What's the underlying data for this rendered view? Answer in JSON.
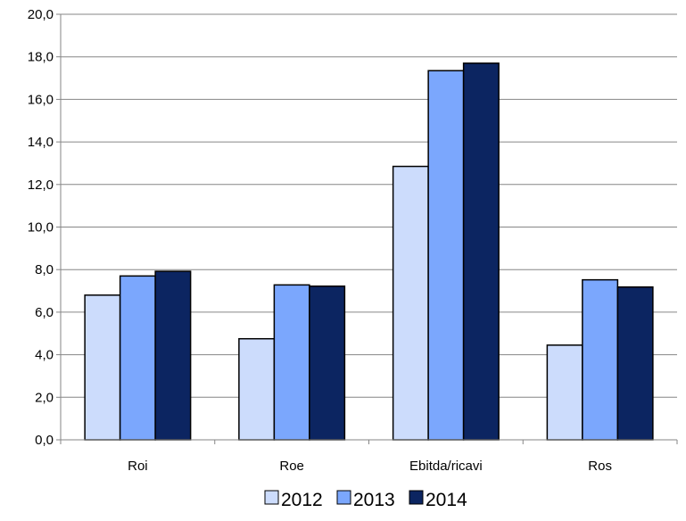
{
  "chart_data": {
    "type": "bar",
    "categories": [
      "Roi",
      "Roe",
      "Ebitda/ricavi",
      "Ros"
    ],
    "series": [
      {
        "name": "2012",
        "color": "#ccdcfc",
        "values": [
          6.8,
          4.75,
          12.85,
          4.45
        ]
      },
      {
        "name": "2013",
        "color": "#7ba7fd",
        "values": [
          7.7,
          7.28,
          17.35,
          7.52
        ]
      },
      {
        "name": "2014",
        "color": "#0c2561",
        "values": [
          7.92,
          7.22,
          17.7,
          7.18
        ]
      }
    ],
    "yticks": [
      "0,0",
      "2,0",
      "4,0",
      "6,0",
      "8,0",
      "10,0",
      "12,0",
      "14,0",
      "16,0",
      "18,0",
      "20,0"
    ],
    "ylim": [
      0,
      20
    ],
    "grid": true,
    "legend_position": "bottom"
  }
}
